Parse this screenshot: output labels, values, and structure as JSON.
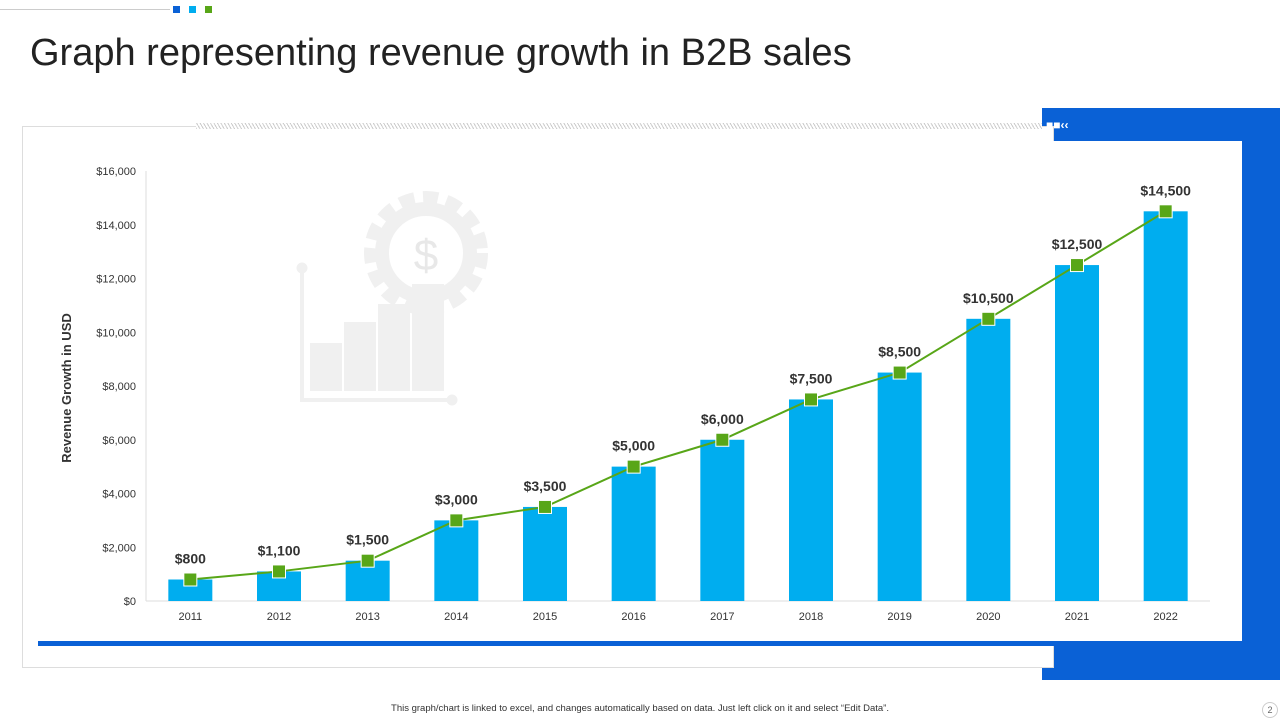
{
  "title": "Graph representing revenue growth in B2B sales",
  "footer": "This graph/chart is linked to excel, and changes automatically based on data. Just left click on it and select “Edit Data”.",
  "page_number": "2",
  "colors": {
    "bar": "#00adef",
    "line": "#58a618",
    "accent": "#0a61d6"
  },
  "chart_data": {
    "type": "bar+line",
    "categories": [
      "2011",
      "2012",
      "2013",
      "2014",
      "2015",
      "2016",
      "2017",
      "2018",
      "2019",
      "2020",
      "2021",
      "2022"
    ],
    "values": [
      800,
      1100,
      1500,
      3000,
      3500,
      5000,
      6000,
      7500,
      8500,
      10500,
      12500,
      14500
    ],
    "data_labels": [
      "$800",
      "$1,100",
      "$1,500",
      "$3,000",
      "$3,500",
      "$5,000",
      "$6,000",
      "$7,500",
      "$8,500",
      "$10,500",
      "$12,500",
      "$14,500"
    ],
    "ylabel": "Revenue Growth in USD",
    "ylim": [
      0,
      16000
    ],
    "yticks": [
      "$0",
      "$2,000",
      "$4,000",
      "$6,000",
      "$8,000",
      "$10,000",
      "$12,000",
      "$14,000",
      "$16,000"
    ],
    "grid": false
  }
}
